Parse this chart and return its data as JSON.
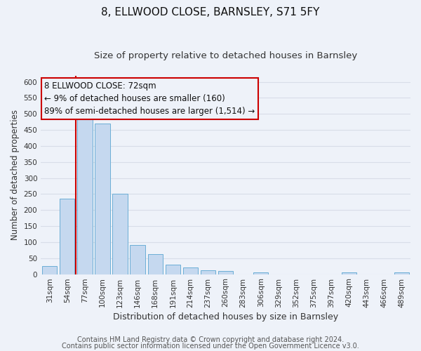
{
  "title": "8, ELLWOOD CLOSE, BARNSLEY, S71 5FY",
  "subtitle": "Size of property relative to detached houses in Barnsley",
  "xlabel": "Distribution of detached houses by size in Barnsley",
  "ylabel": "Number of detached properties",
  "bar_labels": [
    "31sqm",
    "54sqm",
    "77sqm",
    "100sqm",
    "123sqm",
    "146sqm",
    "168sqm",
    "191sqm",
    "214sqm",
    "237sqm",
    "260sqm",
    "283sqm",
    "306sqm",
    "329sqm",
    "352sqm",
    "375sqm",
    "397sqm",
    "420sqm",
    "443sqm",
    "466sqm",
    "489sqm"
  ],
  "bar_values": [
    25,
    235,
    490,
    470,
    250,
    90,
    63,
    30,
    22,
    13,
    10,
    0,
    5,
    0,
    0,
    0,
    0,
    5,
    0,
    0,
    5
  ],
  "bar_color": "#c5d8ef",
  "bar_edge_color": "#6baed6",
  "vline_color": "#cc0000",
  "vline_x": 1.5,
  "annotation_text": "8 ELLWOOD CLOSE: 72sqm\n← 9% of detached houses are smaller (160)\n89% of semi-detached houses are larger (1,514) →",
  "annotation_box_edgecolor": "#cc0000",
  "annotation_fontsize": 8.5,
  "ylim": [
    0,
    620
  ],
  "yticks": [
    0,
    50,
    100,
    150,
    200,
    250,
    300,
    350,
    400,
    450,
    500,
    550,
    600
  ],
  "footer_line1": "Contains HM Land Registry data © Crown copyright and database right 2024.",
  "footer_line2": "Contains public sector information licensed under the Open Government Licence v3.0.",
  "background_color": "#eef2f9",
  "grid_color": "#d8dde8",
  "title_fontsize": 11,
  "subtitle_fontsize": 9.5,
  "xlabel_fontsize": 9,
  "ylabel_fontsize": 8.5,
  "tick_fontsize": 7.5,
  "footer_fontsize": 7
}
